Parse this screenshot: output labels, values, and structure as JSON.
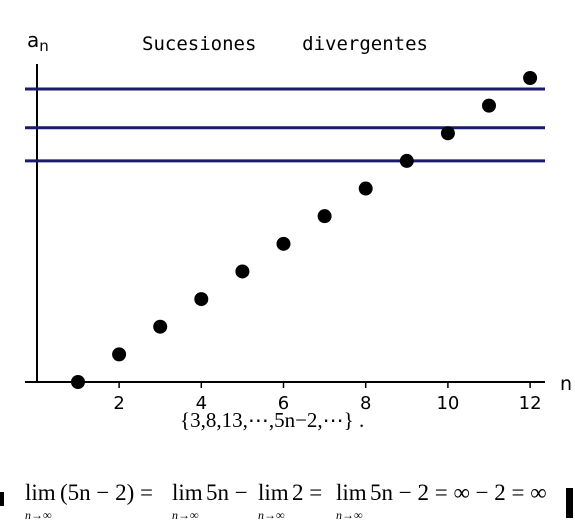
{
  "chart_data": {
    "type": "scatter",
    "title": "Sucesiones    divergentes",
    "ylabel": "an",
    "ylabel_base": "a",
    "ylabel_sub": "n",
    "xlabel": "n",
    "x": [
      1,
      2,
      3,
      4,
      5,
      6,
      7,
      8,
      9,
      10,
      11,
      12
    ],
    "y": [
      3,
      8,
      13,
      18,
      23,
      28,
      33,
      38,
      43,
      48,
      53,
      58
    ],
    "xlim": [
      0.2,
      12.4
    ],
    "ylim": [
      3,
      58
    ],
    "xticks": [
      2,
      4,
      6,
      8,
      10,
      12
    ],
    "xtick_labels": [
      "2",
      "4",
      "6",
      "8",
      "10",
      "12"
    ],
    "grid": false,
    "reference_lines_y": [
      43,
      49,
      56
    ],
    "colors": {
      "points": "#000000",
      "reference_lines": "#1a1a6e",
      "axes": "#000000"
    }
  },
  "formulas": {
    "sequence_text": "{3,8,13,⋯,5n−2,⋯} .",
    "limit": {
      "lim": "lim",
      "sub": "n→∞",
      "expr1": "(5n − 2) = ",
      "expr2": "5n − ",
      "expr3": "2 = ",
      "expr4": "5n − 2 = ∞ − 2 = ∞"
    }
  }
}
